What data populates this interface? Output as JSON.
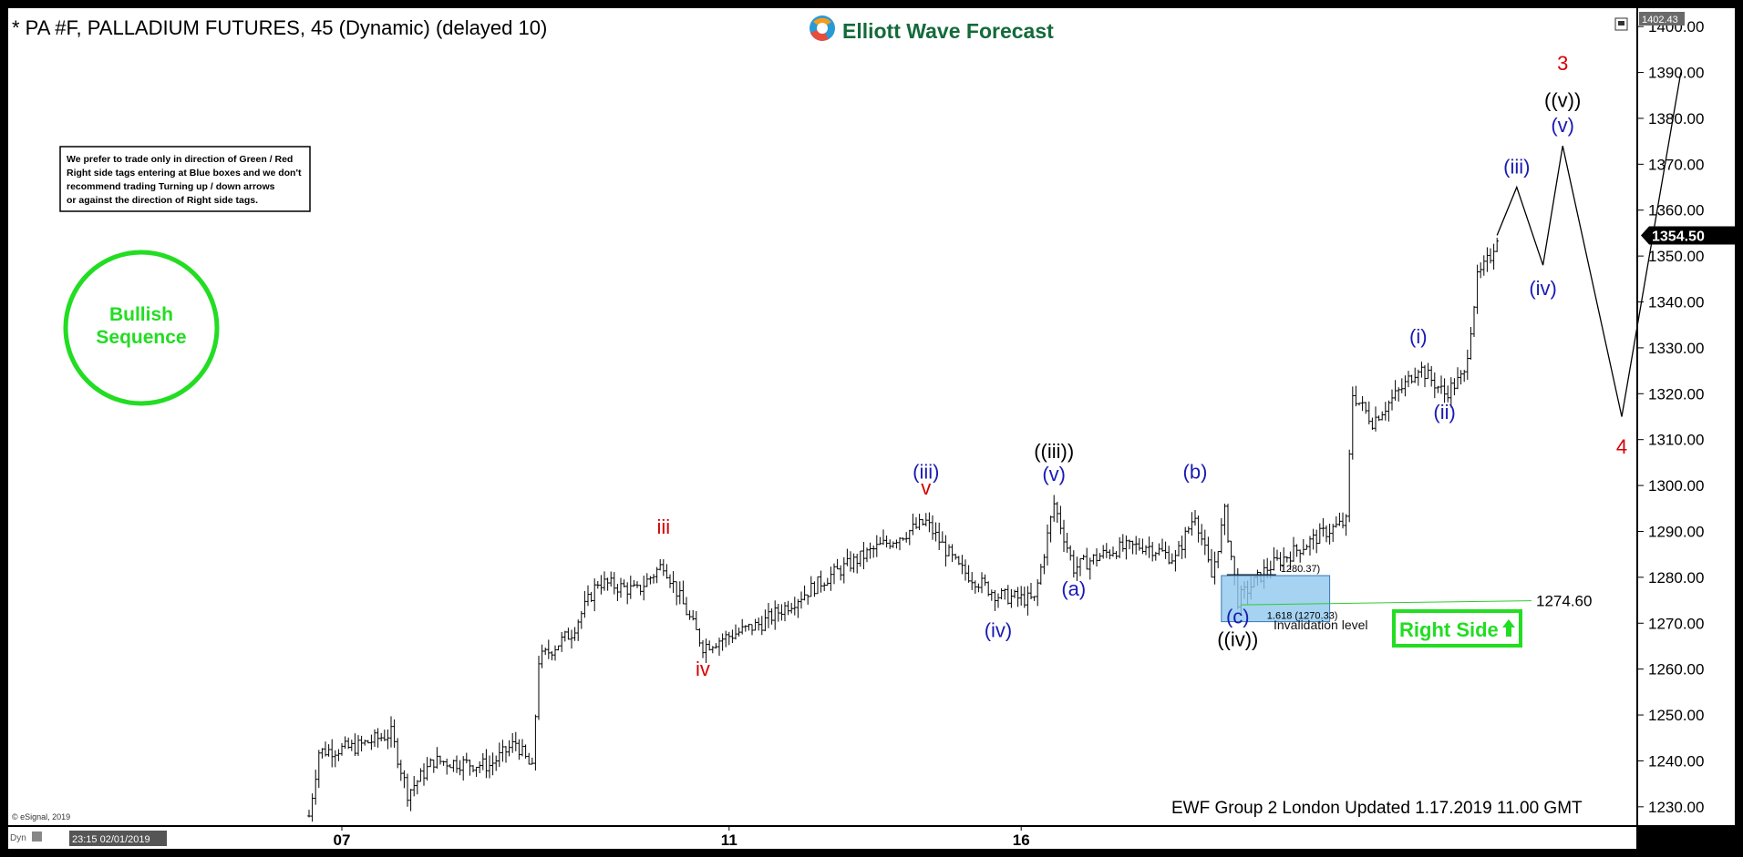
{
  "header": {
    "title": "* PA #F, PALLADIUM FUTURES, 45 (Dynamic) (delayed 10)",
    "logo_text": "Elliott Wave Forecast",
    "top_price_tag": "1402.43"
  },
  "note_box": {
    "lines": [
      "We prefer to trade only in direction of Green / Red",
      "Right side tags entering at Blue boxes and we don't",
      "recommend trading Turning up / down arrows",
      "or against the direction of Right side tags."
    ]
  },
  "bullish_badge": {
    "line1": "Bullish",
    "line2": "Sequence"
  },
  "right_side_tag": {
    "label": "Right Side",
    "color": "#22dd22"
  },
  "last_price_tag": "1354.50",
  "invalidation": {
    "label": "Invalidation level",
    "value_label": "1274.60"
  },
  "blue_box": {
    "top_label": "1280.37)",
    "bottom_label": "1.618 (1270.33)"
  },
  "footer": {
    "updated": "EWF Group 2 London Updated 1.17.2019 11.00 GMT",
    "copyright": "© eSignal, 2019",
    "dyn": "Dyn",
    "cursor_time": "23:15 02/01/2019"
  },
  "colors": {
    "wave_blue": "#1a1ab4",
    "wave_red": "#d40000",
    "green": "#22dd22",
    "box_blue": "#8ec8ee"
  },
  "chart_data": {
    "type": "ohlc",
    "symbol": "PA #F",
    "ylim": [
      1226,
      1404
    ],
    "y_ticks": [
      1230,
      1240,
      1250,
      1260,
      1270,
      1280,
      1290,
      1300,
      1310,
      1320,
      1330,
      1340,
      1350,
      1360,
      1370,
      1380,
      1390,
      1400
    ],
    "x_ticks": [
      "07",
      "11",
      "16"
    ],
    "price_path": [
      {
        "bar": 0,
        "price": 1228
      },
      {
        "bar": 3,
        "price": 1242
      },
      {
        "bar": 14,
        "price": 1243
      },
      {
        "bar": 25,
        "price": 1246
      },
      {
        "bar": 30,
        "price": 1233
      },
      {
        "bar": 38,
        "price": 1240
      },
      {
        "bar": 55,
        "price": 1239
      },
      {
        "bar": 63,
        "price": 1244
      },
      {
        "bar": 68,
        "price": 1238
      },
      {
        "bar": 70,
        "price": 1262
      },
      {
        "bar": 80,
        "price": 1268
      },
      {
        "bar": 88,
        "price": 1279
      },
      {
        "bar": 100,
        "price": 1277
      },
      {
        "bar": 108,
        "price": 1283
      },
      {
        "bar": 120,
        "price": 1265
      },
      {
        "bar": 138,
        "price": 1270
      },
      {
        "bar": 158,
        "price": 1280
      },
      {
        "bar": 172,
        "price": 1286
      },
      {
        "bar": 188,
        "price": 1292
      },
      {
        "bar": 198,
        "price": 1282
      },
      {
        "bar": 210,
        "price": 1276
      },
      {
        "bar": 221,
        "price": 1275
      },
      {
        "bar": 227,
        "price": 1296
      },
      {
        "bar": 233,
        "price": 1282
      },
      {
        "bar": 245,
        "price": 1286
      },
      {
        "bar": 255,
        "price": 1287
      },
      {
        "bar": 264,
        "price": 1284
      },
      {
        "bar": 270,
        "price": 1294
      },
      {
        "bar": 275,
        "price": 1280
      },
      {
        "bar": 279,
        "price": 1294
      },
      {
        "bar": 283,
        "price": 1275
      },
      {
        "bar": 292,
        "price": 1282
      },
      {
        "bar": 310,
        "price": 1290
      },
      {
        "bar": 316,
        "price": 1292
      },
      {
        "bar": 318,
        "price": 1320
      },
      {
        "bar": 324,
        "price": 1314
      },
      {
        "bar": 334,
        "price": 1322
      },
      {
        "bar": 338,
        "price": 1326
      },
      {
        "bar": 346,
        "price": 1320
      },
      {
        "bar": 352,
        "price": 1324
      },
      {
        "bar": 356,
        "price": 1345
      },
      {
        "bar": 360,
        "price": 1350
      },
      {
        "bar": 362,
        "price": 1354.5
      }
    ],
    "projection": [
      {
        "bar": 368,
        "price": 1365
      },
      {
        "bar": 376,
        "price": 1348
      },
      {
        "bar": 382,
        "price": 1374
      },
      {
        "bar": 400,
        "price": 1315
      },
      {
        "bar": 418,
        "price": 1390
      }
    ],
    "invalidation_level": 1274.6,
    "blue_box_range": [
      1270.33,
      1280.37
    ],
    "wave_labels": [
      {
        "text": "iii",
        "bar": 108,
        "price": 1289.5,
        "color": "red"
      },
      {
        "text": "iv",
        "bar": 120,
        "price": 1258.5,
        "color": "red"
      },
      {
        "text": "(iii)",
        "bar": 188,
        "price": 1301.5,
        "color": "blue"
      },
      {
        "text": "v",
        "bar": 188,
        "price": 1298,
        "color": "red"
      },
      {
        "text": "(iv)",
        "bar": 210,
        "price": 1267,
        "color": "blue"
      },
      {
        "text": "((iii))",
        "bar": 227,
        "price": 1306,
        "color": "black"
      },
      {
        "text": "(v)",
        "bar": 227,
        "price": 1301,
        "color": "blue"
      },
      {
        "text": "(a)",
        "bar": 233,
        "price": 1276,
        "color": "blue"
      },
      {
        "text": "(b)",
        "bar": 270,
        "price": 1301.5,
        "color": "blue"
      },
      {
        "text": "(c)",
        "bar": 283,
        "price": 1270,
        "color": "blue"
      },
      {
        "text": "((iv))",
        "bar": 283,
        "price": 1265,
        "color": "black"
      },
      {
        "text": "(i)",
        "bar": 338,
        "price": 1331,
        "color": "blue"
      },
      {
        "text": "(ii)",
        "bar": 346,
        "price": 1314.5,
        "color": "blue"
      },
      {
        "text": "(iii)",
        "bar": 368,
        "price": 1368,
        "color": "blue"
      },
      {
        "text": "(iv)",
        "bar": 376,
        "price": 1341.5,
        "color": "blue"
      },
      {
        "text": "(v)",
        "bar": 382,
        "price": 1377,
        "color": "blue"
      },
      {
        "text": "((v))",
        "bar": 382,
        "price": 1382.5,
        "color": "black"
      },
      {
        "text": "3",
        "bar": 382,
        "price": 1390.5,
        "color": "red"
      },
      {
        "text": "4",
        "bar": 400,
        "price": 1307,
        "color": "red"
      }
    ]
  }
}
